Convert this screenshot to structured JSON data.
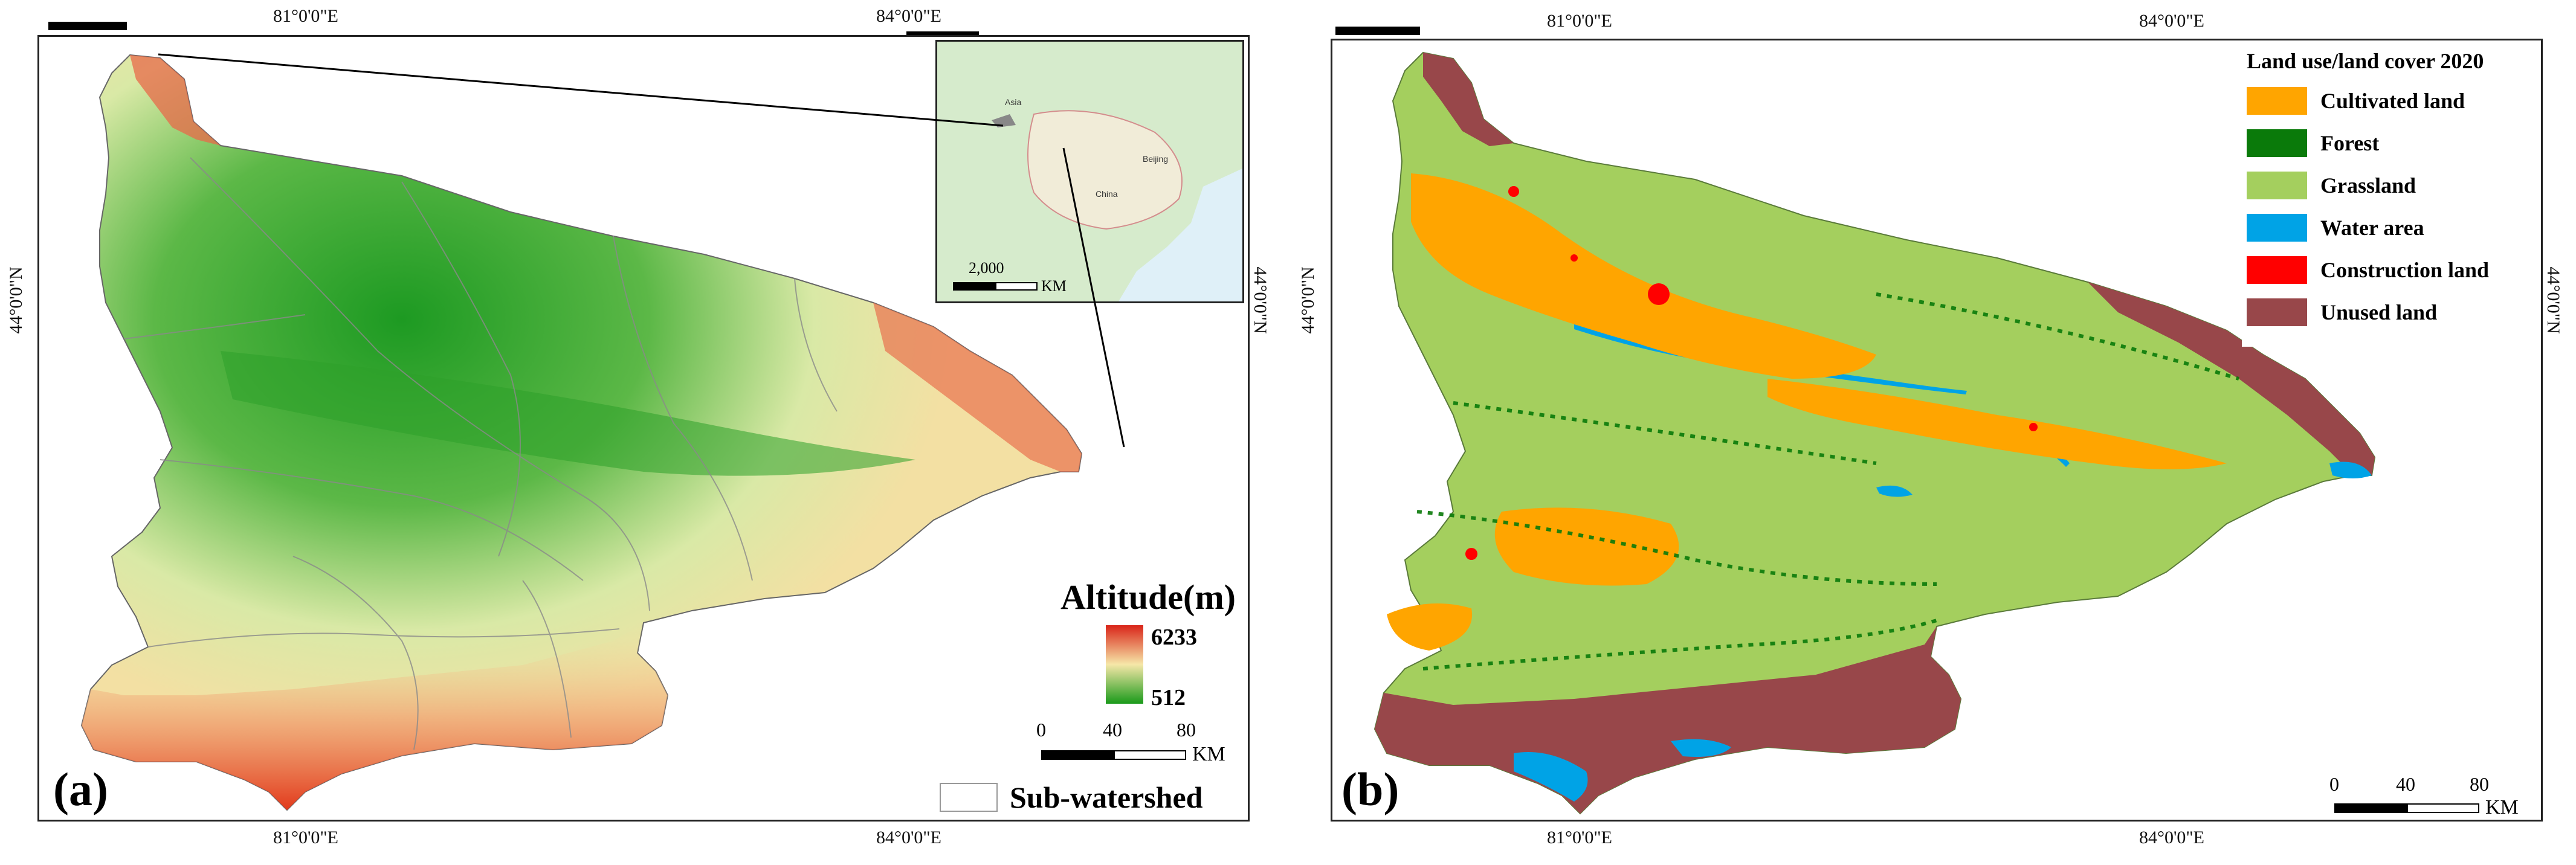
{
  "colors": {
    "cultivated": "#FFA500",
    "forest": "#0A7A0A",
    "grassland": "#A4CF5E",
    "water": "#00A3E6",
    "construction": "#FF0000",
    "unused": "#98474A",
    "elev_low": "#1E9E1E",
    "elev_mid": "#F6E7A8",
    "elev_high": "#E12C1C"
  },
  "panel_a": {
    "label": "(a)",
    "top_lon_1": "81°0'0\"E",
    "top_lon_2": "84°0'0\"E",
    "bottom_lon_1": "81°0'0\"E",
    "bottom_lon_2": "84°0'0\"E",
    "left_lat": "44°0'0\"N",
    "right_lat": "44°0'0\"N",
    "legend": {
      "title": "Altitude(m)",
      "max": "6233",
      "min": "512"
    },
    "scale": {
      "s0": "0",
      "s1": "40",
      "s2": "80",
      "unit": "KM"
    },
    "subwatershed_label": "Sub-watershed",
    "inset": {
      "scale_value": "2,000",
      "scale_unit": "KM",
      "asia": "Asia",
      "china": "China",
      "beijing": "Beijing"
    }
  },
  "panel_b": {
    "label": "(b)",
    "top_lon_1": "81°0'0\"E",
    "top_lon_2": "84°0'0\"E",
    "bottom_lon_1": "81°0'0\"E",
    "bottom_lon_2": "84°0'0\"E",
    "left_lat": "44°0'0\"N",
    "right_lat": "44°0'0\"N",
    "legend": {
      "title": "Land use/land cover 2020",
      "items": [
        {
          "label": "Cultivated  land"
        },
        {
          "label": "Forest"
        },
        {
          "label": "Grassland"
        },
        {
          "label": "Water area"
        },
        {
          "label": "Construction land"
        },
        {
          "label": "Unused  land"
        }
      ]
    },
    "scale": {
      "s0": "0",
      "s1": "40",
      "s2": "80",
      "unit": "KM"
    }
  }
}
